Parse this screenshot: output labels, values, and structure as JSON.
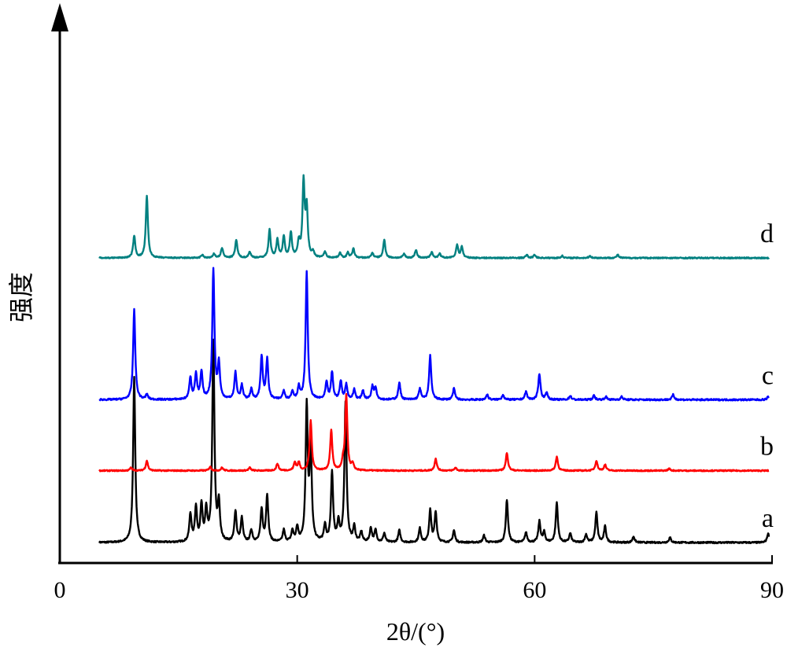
{
  "chart_data": {
    "type": "line",
    "title": "",
    "xlabel": "2θ/(°)",
    "ylabel": "强度",
    "xlim": [
      0,
      90
    ],
    "x_ticks": [
      0,
      30,
      60,
      90
    ],
    "x_tick_labels": [
      "0",
      "30",
      "60",
      "90"
    ],
    "grid": false,
    "legend": "none",
    "series": [
      {
        "name": "a",
        "color": "#000000",
        "baseline": 0,
        "noise": 0.8,
        "peaks": [
          [
            9.4,
            165
          ],
          [
            16.5,
            28
          ],
          [
            17.2,
            34
          ],
          [
            17.9,
            36
          ],
          [
            18.5,
            30
          ],
          [
            19.4,
            200
          ],
          [
            20.1,
            37
          ],
          [
            22.2,
            31
          ],
          [
            23.0,
            24
          ],
          [
            24.2,
            12
          ],
          [
            25.5,
            33
          ],
          [
            26.2,
            47
          ],
          [
            28.3,
            12
          ],
          [
            29.4,
            11
          ],
          [
            30.0,
            14
          ],
          [
            31.2,
            135
          ],
          [
            31.7,
            93
          ],
          [
            33.5,
            16
          ],
          [
            34.4,
            70
          ],
          [
            35.2,
            19
          ],
          [
            36.1,
            140
          ],
          [
            37.2,
            15
          ],
          [
            38.1,
            10
          ],
          [
            39.3,
            14
          ],
          [
            39.9,
            12
          ],
          [
            41.0,
            9
          ],
          [
            42.9,
            12
          ],
          [
            45.5,
            14
          ],
          [
            46.8,
            32
          ],
          [
            47.5,
            30
          ],
          [
            49.8,
            12
          ],
          [
            53.6,
            7
          ],
          [
            56.5,
            43
          ],
          [
            58.9,
            10
          ],
          [
            60.6,
            21
          ],
          [
            61.2,
            10
          ],
          [
            62.8,
            40
          ],
          [
            64.5,
            9
          ],
          [
            66.5,
            8
          ],
          [
            67.8,
            30
          ],
          [
            68.9,
            16
          ],
          [
            72.5,
            6
          ],
          [
            77.1,
            5
          ],
          [
            89.5,
            9
          ]
        ]
      },
      {
        "name": "b",
        "color": "#ff0000",
        "baseline": 72,
        "noise": 0.6,
        "peaks": [
          [
            9.0,
            3
          ],
          [
            11.0,
            10
          ],
          [
            19.0,
            4
          ],
          [
            20.5,
            3
          ],
          [
            24.0,
            3
          ],
          [
            27.5,
            7
          ],
          [
            29.7,
            8
          ],
          [
            30.2,
            8
          ],
          [
            31.7,
            50
          ],
          [
            34.3,
            40
          ],
          [
            35.8,
            8
          ],
          [
            36.2,
            75
          ],
          [
            37.0,
            6
          ],
          [
            47.5,
            12
          ],
          [
            50.0,
            3
          ],
          [
            56.5,
            18
          ],
          [
            62.8,
            14
          ],
          [
            67.8,
            10
          ],
          [
            68.9,
            6
          ],
          [
            77.0,
            2
          ]
        ]
      },
      {
        "name": "c",
        "color": "#0000ff",
        "baseline": 143,
        "noise": 0.8,
        "peaks": [
          [
            9.4,
            90
          ],
          [
            11.0,
            5
          ],
          [
            16.5,
            22
          ],
          [
            17.2,
            25
          ],
          [
            17.9,
            27
          ],
          [
            19.4,
            130
          ],
          [
            20.1,
            35
          ],
          [
            22.2,
            27
          ],
          [
            23.0,
            14
          ],
          [
            24.2,
            10
          ],
          [
            25.5,
            43
          ],
          [
            26.2,
            40
          ],
          [
            28.3,
            9
          ],
          [
            29.4,
            8
          ],
          [
            30.2,
            12
          ],
          [
            31.2,
            128
          ],
          [
            33.7,
            17
          ],
          [
            34.4,
            27
          ],
          [
            35.5,
            18
          ],
          [
            36.2,
            15
          ],
          [
            37.2,
            10
          ],
          [
            38.3,
            9
          ],
          [
            39.5,
            13
          ],
          [
            39.9,
            12
          ],
          [
            42.9,
            17
          ],
          [
            45.5,
            11
          ],
          [
            46.8,
            44
          ],
          [
            49.8,
            11
          ],
          [
            54.0,
            5
          ],
          [
            56.0,
            5
          ],
          [
            58.9,
            8
          ],
          [
            60.6,
            26
          ],
          [
            61.5,
            7
          ],
          [
            64.5,
            4
          ],
          [
            67.5,
            4
          ],
          [
            69.0,
            3
          ],
          [
            71.0,
            3
          ],
          [
            77.5,
            5
          ],
          [
            89.5,
            3
          ]
        ]
      },
      {
        "name": "d",
        "color": "#008080",
        "baseline": 285,
        "noise": 0.6,
        "peaks": [
          [
            9.4,
            22
          ],
          [
            11.0,
            62
          ],
          [
            18.0,
            3
          ],
          [
            19.5,
            4
          ],
          [
            20.5,
            10
          ],
          [
            22.3,
            18
          ],
          [
            24.0,
            6
          ],
          [
            26.5,
            28
          ],
          [
            27.5,
            18
          ],
          [
            28.3,
            21
          ],
          [
            29.2,
            25
          ],
          [
            30.2,
            15
          ],
          [
            30.8,
            75
          ],
          [
            31.2,
            48
          ],
          [
            32.0,
            5
          ],
          [
            33.5,
            6
          ],
          [
            35.4,
            5
          ],
          [
            36.4,
            5
          ],
          [
            37.1,
            9
          ],
          [
            39.5,
            5
          ],
          [
            41.0,
            18
          ],
          [
            43.5,
            4
          ],
          [
            45.0,
            8
          ],
          [
            47.0,
            6
          ],
          [
            48.0,
            4
          ],
          [
            50.2,
            13
          ],
          [
            50.8,
            11
          ],
          [
            59.0,
            3
          ],
          [
            60.0,
            3
          ],
          [
            63.5,
            2
          ],
          [
            67.0,
            2
          ],
          [
            70.5,
            3
          ]
        ]
      }
    ]
  }
}
